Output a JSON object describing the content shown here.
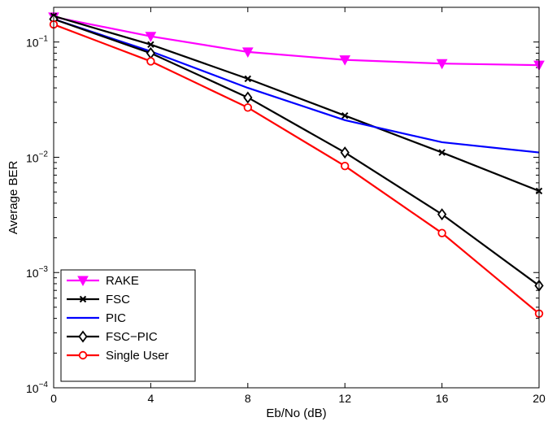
{
  "chart_data": {
    "type": "line",
    "title": "",
    "xlabel": "Eb/No (dB)",
    "ylabel": "Average BER",
    "xlim": [
      0,
      20
    ],
    "ylim": [
      0.0001,
      0.2
    ],
    "yscale": "log",
    "grid": false,
    "legend_position": "bottom-left",
    "x": [
      0,
      4,
      8,
      12,
      16,
      20
    ],
    "xticks": [
      "0",
      "4",
      "8",
      "12",
      "16",
      "20"
    ],
    "yticks": [
      {
        "value": 0.1,
        "base": "10",
        "exp": "−1"
      },
      {
        "value": 0.01,
        "base": "10",
        "exp": "−2"
      },
      {
        "value": 0.001,
        "base": "10",
        "exp": "−3"
      },
      {
        "value": 0.0001,
        "base": "10",
        "exp": "−4"
      }
    ],
    "series": [
      {
        "name": "RAKE",
        "color": "#ff00ff",
        "marker": "triangle-down",
        "values": [
          0.165,
          0.112,
          0.082,
          0.07,
          0.065,
          0.063
        ]
      },
      {
        "name": "FSC",
        "color": "#000000",
        "marker": "x",
        "values": [
          0.168,
          0.095,
          0.048,
          0.023,
          0.011,
          0.0051
        ]
      },
      {
        "name": "PIC",
        "color": "#0000ff",
        "marker": "none",
        "values": [
          0.158,
          0.083,
          0.04,
          0.021,
          0.0135,
          0.011
        ]
      },
      {
        "name": "FSC−PIC",
        "color": "#000000",
        "marker": "diamond",
        "values": [
          0.158,
          0.08,
          0.033,
          0.011,
          0.0032,
          0.00077
        ]
      },
      {
        "name": "Single User",
        "color": "#ff0000",
        "marker": "circle",
        "values": [
          0.142,
          0.068,
          0.027,
          0.0084,
          0.0022,
          0.00044
        ]
      }
    ]
  }
}
